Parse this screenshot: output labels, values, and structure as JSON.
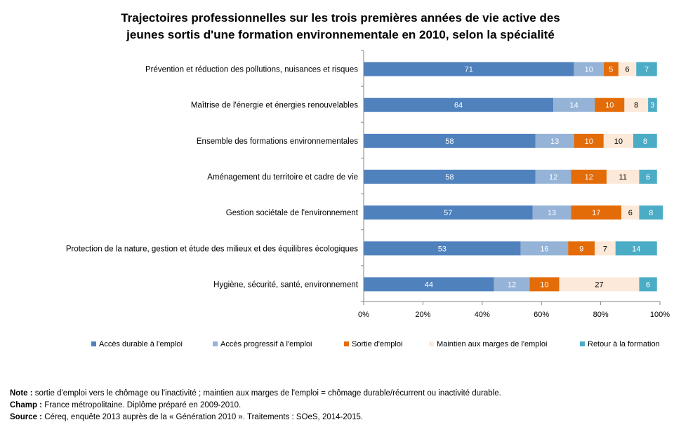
{
  "chart_data": {
    "type": "bar",
    "orientation": "horizontal",
    "stacked": true,
    "title_line1": "Trajectoires professionnelles sur les trois premières années de vie active des",
    "title_line2": "jeunes sortis d'une formation environnementale en 2010, selon la spécialité",
    "categories": [
      "Prévention et réduction des pollutions, nuisances et risques",
      "Maîtrise de l'énergie et énergies renouvelables",
      "Ensemble des formations environnementales",
      "Aménagement du territoire et cadre de vie",
      "Gestion sociétale de l'environnement",
      "Protection de la nature, gestion et étude des milieux et des équilibres écologiques",
      "Hygiène, sécurité, santé, environnement"
    ],
    "series": [
      {
        "name": "Accès durable à l'emploi",
        "color": "#4f81bd",
        "values": [
          71,
          64,
          58,
          58,
          57,
          53,
          44
        ]
      },
      {
        "name": "Accès progressif à l'emploi",
        "color": "#95b3d7",
        "values": [
          10,
          14,
          13,
          12,
          13,
          16,
          12
        ]
      },
      {
        "name": "Sortie d'emploi",
        "color": "#e36c09",
        "values": [
          5,
          10,
          10,
          12,
          17,
          9,
          10
        ]
      },
      {
        "name": "Maintien aux marges de l'emploi",
        "color": "#fde9d9",
        "values": [
          6,
          8,
          10,
          11,
          6,
          7,
          27
        ]
      },
      {
        "name": "Retour à la formation",
        "color": "#4bacc6",
        "values": [
          7,
          3,
          8,
          6,
          8,
          14,
          6
        ]
      }
    ],
    "xlim": [
      0,
      100
    ],
    "x_ticks": [
      "0%",
      "20%",
      "40%",
      "60%",
      "80%",
      "100%"
    ],
    "legend_position": "bottom",
    "grid": false
  },
  "notes": {
    "note_label": "Note :",
    "note_text": " sortie d'emploi vers le chômage ou l'inactivité ; maintien aux marges de l'emploi = chômage durable/récurrent ou inactivité durable.",
    "champ_label": "Champ :",
    "champ_text": " France métropolitaine. Diplôme préparé en 2009-2010.",
    "source_label": "Source :",
    "source_text": " Céreq, enquête 2013 auprès de la « Génération 2010 ». Traitements : SOeS, 2014-2015."
  }
}
